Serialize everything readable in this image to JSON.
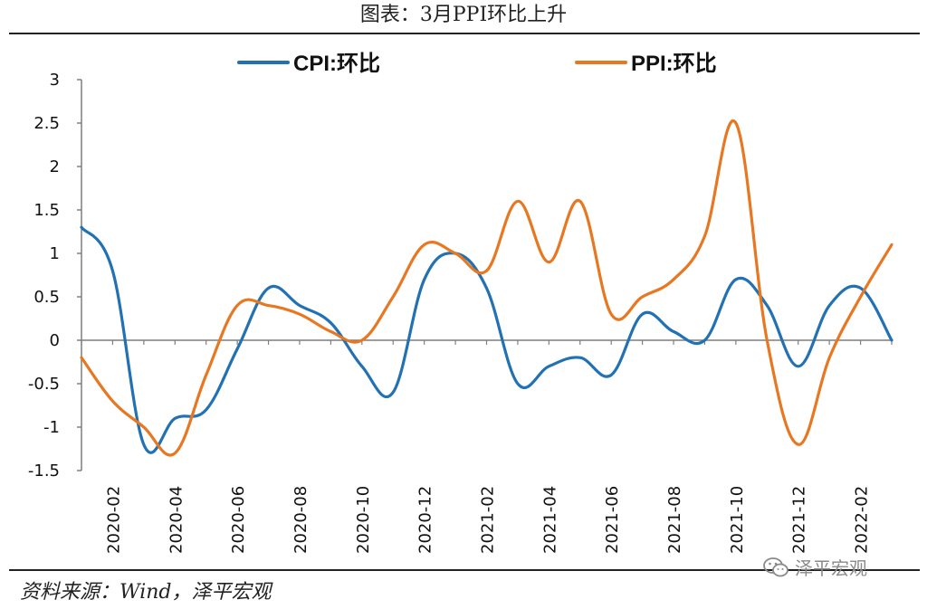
{
  "header": {
    "title": "图表：3月PPI环比上升"
  },
  "footer": {
    "source": "资料来源：Wind，泽平宏观",
    "watermark": "泽平宏观"
  },
  "colors": {
    "cpi": "#2271B3",
    "ppi": "#E87722",
    "axis": "#7F7F7F",
    "text": "#111111"
  },
  "chart_data": {
    "type": "line",
    "title": "图表：3月PPI环比上升",
    "legend_position": "top",
    "grid": false,
    "ylim": [
      -1.5,
      3
    ],
    "yticks": [
      3,
      2.5,
      2,
      1.5,
      1,
      0.5,
      0,
      -0.5,
      -1,
      -1.5
    ],
    "ytick_labels": [
      "3",
      "2.5",
      "2",
      "1.5",
      "1",
      "0.5",
      "0",
      "-0.5",
      "-1",
      "-1.5"
    ],
    "x": [
      "2020-01",
      "2020-02",
      "2020-03",
      "2020-04",
      "2020-05",
      "2020-06",
      "2020-07",
      "2020-08",
      "2020-09",
      "2020-10",
      "2020-11",
      "2020-12",
      "2021-01",
      "2021-02",
      "2021-03",
      "2021-04",
      "2021-05",
      "2021-06",
      "2021-07",
      "2021-08",
      "2021-09",
      "2021-10",
      "2021-11",
      "2021-12",
      "2022-01",
      "2022-02",
      "2022-03"
    ],
    "xtick_labels": [
      "2020-02",
      "2020-04",
      "2020-06",
      "2020-08",
      "2020-10",
      "2020-12",
      "2021-02",
      "2021-04",
      "2021-06",
      "2021-08",
      "2021-10",
      "2021-12",
      "2022-02"
    ],
    "series": [
      {
        "name": "CPI:环比",
        "color": "#2271B3",
        "values": [
          1.3,
          0.8,
          -1.2,
          -0.9,
          -0.8,
          -0.1,
          0.6,
          0.4,
          0.2,
          -0.3,
          -0.6,
          0.7,
          1.0,
          0.6,
          -0.5,
          -0.3,
          -0.2,
          -0.4,
          0.3,
          0.1,
          0.0,
          0.7,
          0.4,
          -0.3,
          0.4,
          0.6,
          0.0
        ]
      },
      {
        "name": "PPI:环比",
        "color": "#E87722",
        "values": [
          -0.2,
          -0.7,
          -1.0,
          -1.3,
          -0.4,
          0.4,
          0.4,
          0.3,
          0.1,
          0.0,
          0.5,
          1.1,
          1.0,
          0.8,
          1.6,
          0.9,
          1.6,
          0.3,
          0.5,
          0.7,
          1.2,
          2.5,
          0.0,
          -1.2,
          -0.2,
          0.5,
          1.1
        ]
      }
    ]
  }
}
